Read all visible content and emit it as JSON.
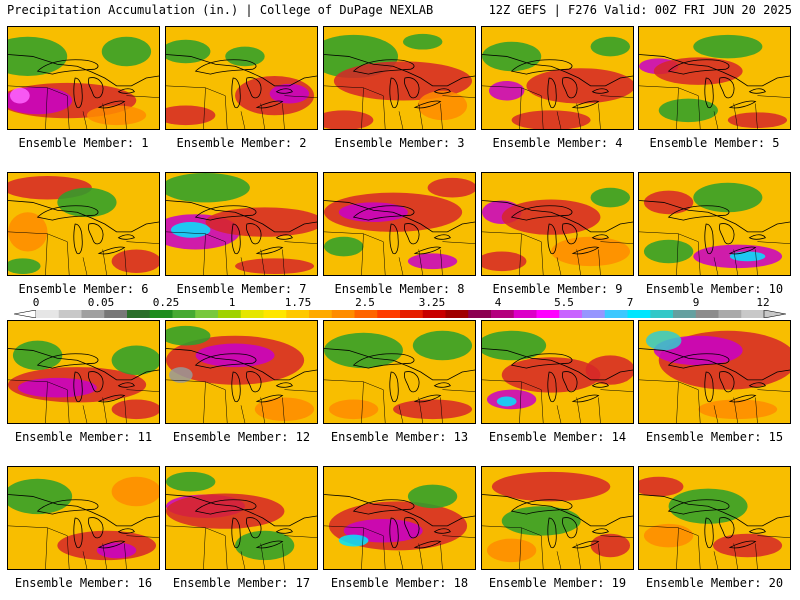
{
  "header": {
    "left_title": "Precipitation Accumulation (in.) | College of DuPage NEXLAB",
    "right_title": "12Z GEFS | F276 Valid: 00Z FRI JUN 20 2025"
  },
  "members": [
    {
      "label": "Ensemble Member: 1",
      "blobs": [
        [
          "#2ca02c",
          20,
          30,
          40,
          20
        ],
        [
          "#d62728",
          60,
          75,
          70,
          18
        ],
        [
          "#c800c8",
          30,
          75,
          35,
          14
        ],
        [
          "#ff66ff",
          12,
          70,
          10,
          8
        ],
        [
          "#2ca02c",
          120,
          25,
          25,
          15
        ],
        [
          "#ff8c00",
          110,
          90,
          30,
          10
        ]
      ]
    },
    {
      "label": "Ensemble Member: 2",
      "blobs": [
        [
          "#d62728",
          110,
          70,
          40,
          20
        ],
        [
          "#c800c8",
          125,
          68,
          20,
          10
        ],
        [
          "#2ca02c",
          20,
          25,
          25,
          12
        ],
        [
          "#d62728",
          20,
          90,
          30,
          10
        ],
        [
          "#2ca02c",
          80,
          30,
          20,
          10
        ]
      ]
    },
    {
      "label": "Ensemble Member: 3",
      "blobs": [
        [
          "#2ca02c",
          30,
          30,
          45,
          22
        ],
        [
          "#d62728",
          80,
          55,
          70,
          20
        ],
        [
          "#d62728",
          20,
          95,
          30,
          10
        ],
        [
          "#ff8c00",
          120,
          80,
          25,
          15
        ],
        [
          "#2ca02c",
          100,
          15,
          20,
          8
        ]
      ]
    },
    {
      "label": "Ensemble Member: 4",
      "blobs": [
        [
          "#2ca02c",
          30,
          30,
          30,
          15
        ],
        [
          "#d62728",
          100,
          60,
          55,
          18
        ],
        [
          "#c800c8",
          25,
          65,
          18,
          10
        ],
        [
          "#d62728",
          70,
          95,
          40,
          10
        ],
        [
          "#2ca02c",
          130,
          20,
          20,
          10
        ]
      ]
    },
    {
      "label": "Ensemble Member: 5",
      "blobs": [
        [
          "#c800c8",
          20,
          40,
          20,
          8
        ],
        [
          "#d62728",
          60,
          45,
          45,
          14
        ],
        [
          "#2ca02c",
          90,
          20,
          35,
          12
        ],
        [
          "#2ca02c",
          50,
          85,
          30,
          12
        ],
        [
          "#d62728",
          120,
          95,
          30,
          8
        ]
      ]
    },
    {
      "label": "Ensemble Member: 6",
      "blobs": [
        [
          "#d62728",
          40,
          15,
          45,
          12
        ],
        [
          "#2ca02c",
          80,
          30,
          30,
          15
        ],
        [
          "#d62728",
          130,
          90,
          25,
          12
        ],
        [
          "#ff8c00",
          20,
          60,
          20,
          20
        ],
        [
          "#2ca02c",
          15,
          95,
          18,
          8
        ]
      ]
    },
    {
      "label": "Ensemble Member: 7",
      "blobs": [
        [
          "#2ca02c",
          40,
          15,
          45,
          15
        ],
        [
          "#c800c8",
          30,
          60,
          45,
          18
        ],
        [
          "#00e5ff",
          25,
          58,
          20,
          8
        ],
        [
          "#d62728",
          100,
          50,
          60,
          15
        ],
        [
          "#d62728",
          110,
          95,
          40,
          8
        ]
      ]
    },
    {
      "label": "Ensemble Member: 8",
      "blobs": [
        [
          "#d62728",
          70,
          40,
          70,
          20
        ],
        [
          "#c800c8",
          50,
          40,
          35,
          10
        ],
        [
          "#c800c8",
          110,
          90,
          25,
          8
        ],
        [
          "#2ca02c",
          20,
          75,
          20,
          10
        ],
        [
          "#d62728",
          130,
          15,
          25,
          10
        ]
      ]
    },
    {
      "label": "Ensemble Member: 9",
      "blobs": [
        [
          "#c800c8",
          20,
          40,
          20,
          12
        ],
        [
          "#d62728",
          70,
          45,
          50,
          18
        ],
        [
          "#ff8c00",
          110,
          80,
          40,
          15
        ],
        [
          "#2ca02c",
          130,
          25,
          20,
          10
        ],
        [
          "#d62728",
          20,
          90,
          25,
          10
        ]
      ]
    },
    {
      "label": "Ensemble Member: 10",
      "blobs": [
        [
          "#2ca02c",
          90,
          25,
          35,
          15
        ],
        [
          "#c800c8",
          100,
          85,
          45,
          12
        ],
        [
          "#00e5ff",
          110,
          85,
          18,
          5
        ],
        [
          "#2ca02c",
          30,
          80,
          25,
          12
        ],
        [
          "#d62728",
          30,
          30,
          25,
          12
        ]
      ]
    },
    {
      "label": "Ensemble Member: 11",
      "blobs": [
        [
          "#d62728",
          70,
          65,
          70,
          18
        ],
        [
          "#c800c8",
          50,
          68,
          40,
          10
        ],
        [
          "#2ca02c",
          30,
          35,
          25,
          15
        ],
        [
          "#2ca02c",
          130,
          40,
          25,
          15
        ],
        [
          "#d62728",
          130,
          90,
          25,
          10
        ]
      ]
    },
    {
      "label": "Ensemble Member: 12",
      "blobs": [
        [
          "#d62728",
          70,
          40,
          70,
          25
        ],
        [
          "#c800c8",
          70,
          35,
          40,
          12
        ],
        [
          "#2ca02c",
          20,
          15,
          25,
          10
        ],
        [
          "#999999",
          15,
          55,
          12,
          8
        ],
        [
          "#ff8c00",
          120,
          90,
          30,
          12
        ]
      ]
    },
    {
      "label": "Ensemble Member: 13",
      "blobs": [
        [
          "#2ca02c",
          40,
          30,
          40,
          18
        ],
        [
          "#2ca02c",
          120,
          25,
          30,
          15
        ],
        [
          "#d62728",
          110,
          90,
          40,
          10
        ],
        [
          "#ff8c00",
          30,
          90,
          25,
          10
        ]
      ]
    },
    {
      "label": "Ensemble Member: 14",
      "blobs": [
        [
          "#2ca02c",
          30,
          25,
          35,
          15
        ],
        [
          "#d62728",
          70,
          55,
          50,
          18
        ],
        [
          "#c800c8",
          30,
          80,
          25,
          10
        ],
        [
          "#00e5ff",
          25,
          82,
          10,
          5
        ],
        [
          "#d62728",
          130,
          50,
          25,
          15
        ]
      ]
    },
    {
      "label": "Ensemble Member: 15",
      "blobs": [
        [
          "#d62728",
          90,
          40,
          70,
          30
        ],
        [
          "#c800c8",
          60,
          30,
          45,
          15
        ],
        [
          "#33cccc",
          25,
          20,
          18,
          10
        ],
        [
          "#ff8c00",
          100,
          90,
          40,
          10
        ]
      ]
    },
    {
      "label": "Ensemble Member: 16",
      "blobs": [
        [
          "#2ca02c",
          30,
          30,
          35,
          18
        ],
        [
          "#d62728",
          100,
          80,
          50,
          15
        ],
        [
          "#c800c8",
          110,
          85,
          20,
          8
        ],
        [
          "#ff8c00",
          130,
          25,
          25,
          15
        ]
      ]
    },
    {
      "label": "Ensemble Member: 17",
      "blobs": [
        [
          "#c800c8",
          40,
          40,
          40,
          12
        ],
        [
          "#d62728",
          60,
          45,
          60,
          18
        ],
        [
          "#2ca02c",
          25,
          15,
          25,
          10
        ],
        [
          "#2ca02c",
          100,
          80,
          30,
          15
        ]
      ]
    },
    {
      "label": "Ensemble Member: 18",
      "blobs": [
        [
          "#d62728",
          75,
          60,
          70,
          25
        ],
        [
          "#c800c8",
          60,
          65,
          40,
          12
        ],
        [
          "#00e5ff",
          30,
          75,
          15,
          6
        ],
        [
          "#2ca02c",
          110,
          30,
          25,
          12
        ]
      ]
    },
    {
      "label": "Ensemble Member: 19",
      "blobs": [
        [
          "#d62728",
          70,
          20,
          60,
          15
        ],
        [
          "#2ca02c",
          60,
          55,
          40,
          15
        ],
        [
          "#ff8c00",
          30,
          85,
          25,
          12
        ],
        [
          "#d62728",
          130,
          80,
          20,
          12
        ]
      ]
    },
    {
      "label": "Ensemble Member: 20",
      "blobs": [
        [
          "#2ca02c",
          70,
          40,
          40,
          18
        ],
        [
          "#d62728",
          110,
          80,
          35,
          12
        ],
        [
          "#ff8c00",
          30,
          70,
          25,
          12
        ],
        [
          "#d62728",
          20,
          20,
          25,
          10
        ]
      ]
    }
  ],
  "colorbar": {
    "tick_labels": [
      "0",
      "0.05",
      "0.25",
      "1",
      "1.75",
      "2.5",
      "3.25",
      "4",
      "5.5",
      "7",
      "9",
      "12"
    ],
    "colors": [
      "#e6e6e6",
      "#c8c8c8",
      "#a0a0a0",
      "#787878",
      "#2a6e2a",
      "#1e8c1e",
      "#46aa32",
      "#78c83c",
      "#a0d200",
      "#e6e600",
      "#ffe600",
      "#ffc800",
      "#ffaa00",
      "#ff8c00",
      "#ff6400",
      "#ff3c00",
      "#e61e00",
      "#c80000",
      "#a00000",
      "#8c0050",
      "#b4007d",
      "#dc00c8",
      "#ff00ff",
      "#c864ff",
      "#9696ff",
      "#3cc8ff",
      "#00e6ff",
      "#32c8c8",
      "#64a0a0",
      "#8c8c8c",
      "#aaaaaa",
      "#c8c8c8"
    ]
  }
}
